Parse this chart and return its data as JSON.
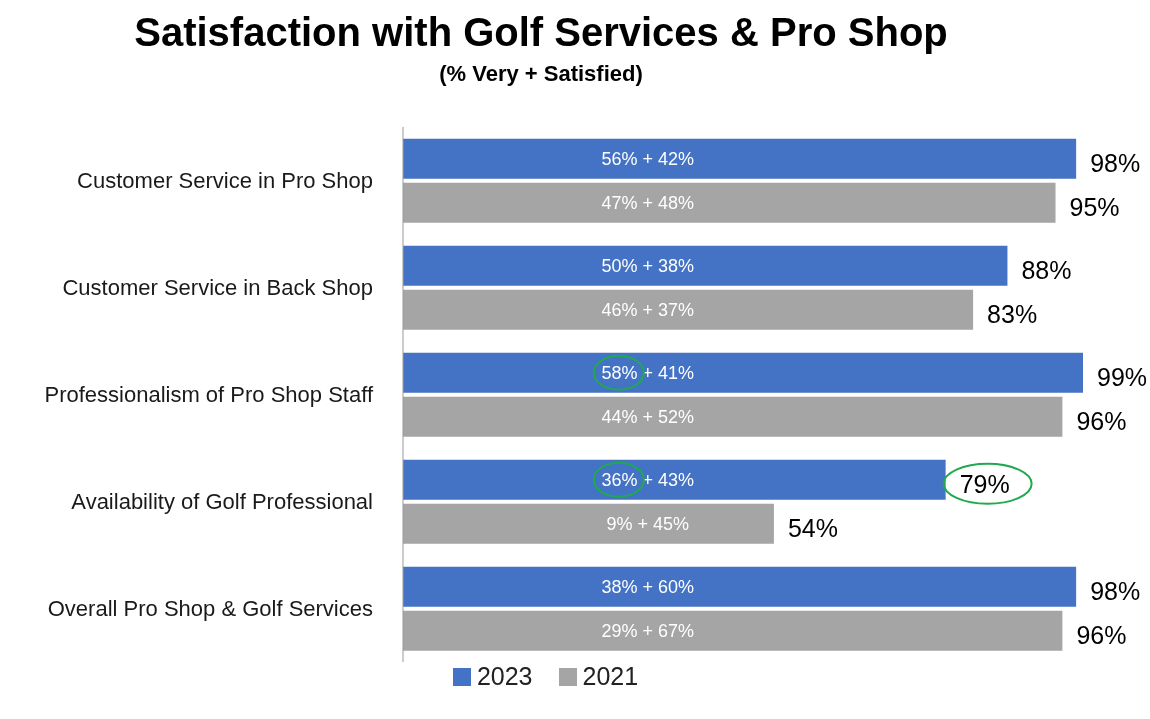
{
  "chart_data": {
    "type": "bar",
    "orientation": "horizontal",
    "title": "Satisfaction with Golf Services & Pro Shop",
    "subtitle": "(% Very + Satisfied)",
    "categories": [
      "Customer Service in Pro Shop",
      "Customer Service in Back Shop",
      "Professionalism of Pro Shop Staff",
      "Availability of Golf Professional",
      "Overall Pro Shop & Golf Services"
    ],
    "series": [
      {
        "name": "2023",
        "color": "#4472c4",
        "values": [
          98,
          88,
          99,
          79,
          98
        ],
        "value_labels": [
          "98%",
          "88%",
          "99%",
          "79%",
          "98%"
        ]
      },
      {
        "name": "2021",
        "color": "#a5a5a5",
        "values": [
          95,
          83,
          96,
          54,
          96
        ],
        "value_labels": [
          "95%",
          "83%",
          "96%",
          "54%",
          "96%"
        ]
      }
    ],
    "annotations": [
      "56% + 42%",
      "47% + 48%",
      "50% + 38%",
      "46% + 37%",
      "58% + 41%",
      "44% + 52%",
      "36% + 43%",
      "9% + 45%",
      "38% + 60%",
      "29% + 67%"
    ],
    "legend": "bottom",
    "grid": false
  }
}
